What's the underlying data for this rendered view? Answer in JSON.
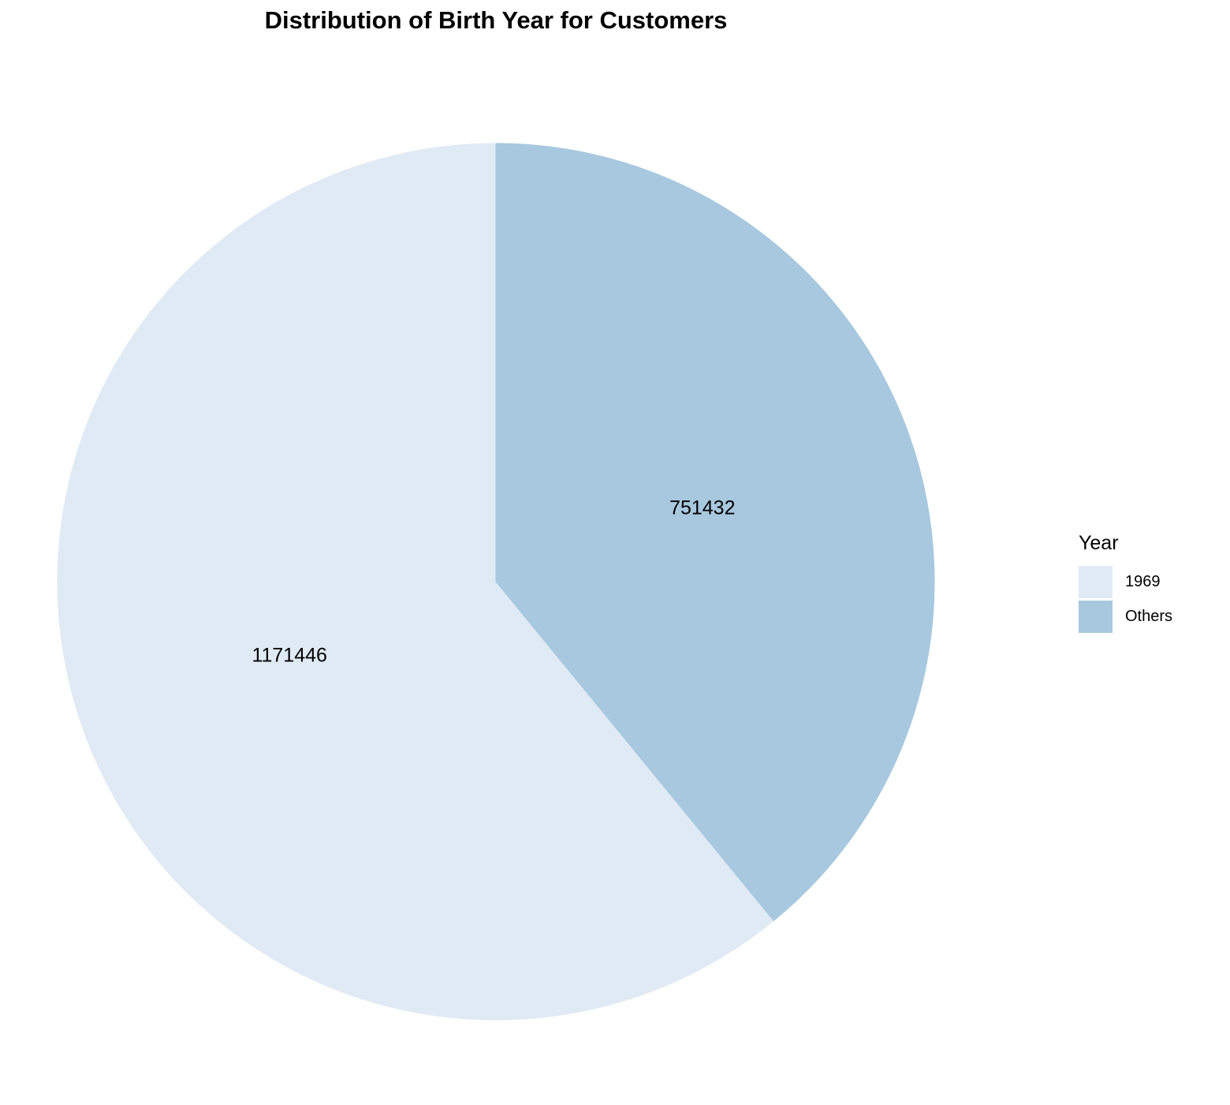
{
  "chart_data": {
    "type": "pie",
    "title": "Distribution of Birth Year for Customers",
    "legend_title": "Year",
    "legend_position": "right",
    "start_angle": "12 o'clock",
    "direction": "counterclockwise",
    "slices": [
      {
        "name": "1969",
        "value": 1171446,
        "label": "1171446",
        "color": "#e0eaf5"
      },
      {
        "name": "Others",
        "value": 751432,
        "label": "751432",
        "color": "#a7c8df"
      }
    ]
  }
}
